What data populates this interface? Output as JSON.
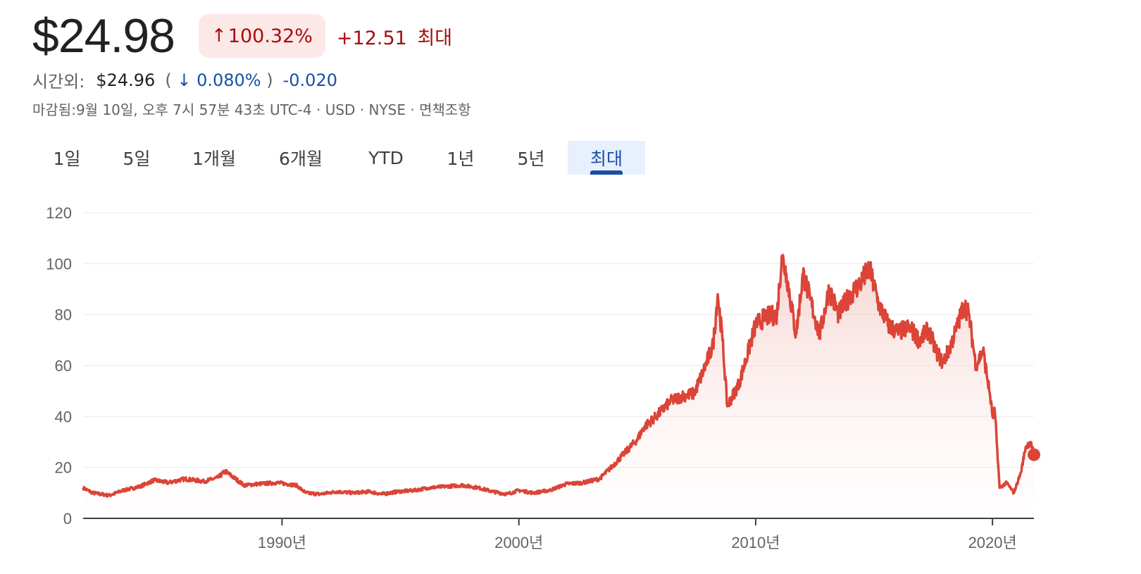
{
  "quote": {
    "price": "$24.98",
    "change_arrow": "↑",
    "change_percent": "100.32%",
    "change_abs": "+12.51",
    "change_period": "최대",
    "up_color": "#a50e0e",
    "badge_color": "#fce8e6"
  },
  "after_hours": {
    "label": "시간외:",
    "price": "$24.96",
    "open_paren": "(",
    "arrow": "↓",
    "percent": "0.080%",
    "close_paren": ")",
    "abs": "-0.020",
    "down_color": "#1a4fa6"
  },
  "meta_line": "마감됨:9월 10일, 오후 7시 57분 43초 UTC-4 · USD · NYSE · 면책조항",
  "tabs": [
    {
      "label": "1일",
      "active": false
    },
    {
      "label": "5일",
      "active": false
    },
    {
      "label": "1개월",
      "active": false
    },
    {
      "label": "6개월",
      "active": false
    },
    {
      "label": "YTD",
      "active": false
    },
    {
      "label": "1년",
      "active": false
    },
    {
      "label": "5년",
      "active": false
    },
    {
      "label": "최대",
      "active": true
    }
  ],
  "chart_data": {
    "type": "line",
    "line_color": "#db4437",
    "fill": "gradient-red",
    "grid": true,
    "ylim": [
      0,
      120
    ],
    "y_ticks": [
      "0",
      "20",
      "40",
      "60",
      "80",
      "100",
      "120"
    ],
    "x_ticks": [
      {
        "label": "1990년",
        "x": 1990
      },
      {
        "label": "2000년",
        "x": 2000
      },
      {
        "label": "2010년",
        "x": 2010
      },
      {
        "label": "2020년",
        "x": 2020
      }
    ],
    "xlim": [
      1981.6,
      2021.75
    ],
    "series": [
      {
        "x": [
          1981.6,
          1982.0,
          1982.7,
          1983.3,
          1984.0,
          1984.6,
          1985.2,
          1985.9,
          1986.7,
          1987.3,
          1987.6,
          1988.4,
          1989.0,
          1989.8,
          1990.6,
          1991.0,
          1991.6,
          1992.3,
          1993.0,
          1993.7,
          1994.2,
          1994.9,
          1995.6,
          1996.2,
          1996.9,
          1997.6,
          1998.3,
          1998.9,
          1999.5,
          2000.0,
          2000.6,
          2001.3,
          2002.0,
          2002.7,
          2003.4,
          2003.9,
          2004.4,
          2005.0,
          2005.3,
          2005.8,
          2006.4,
          2006.9,
          2007.4,
          2007.8,
          2008.2,
          2008.4,
          2008.6,
          2008.8,
          2009.3,
          2009.7,
          2010.0,
          2010.4,
          2010.9,
          2011.1,
          2011.3,
          2011.7,
          2012.0,
          2012.3,
          2012.7,
          2013.1,
          2013.5,
          2014.0,
          2014.4,
          2014.8,
          2015.2,
          2015.6,
          2016.0,
          2016.5,
          2016.9,
          2017.3,
          2017.6,
          2017.9,
          2018.2,
          2018.5,
          2018.8,
          2019.0,
          2019.3,
          2019.6,
          2019.9,
          2020.0,
          2020.1,
          2020.3,
          2020.6,
          2020.9,
          2021.2,
          2021.4,
          2021.6,
          2021.75
        ],
        "y": [
          12,
          10,
          9,
          11,
          12.5,
          15,
          14,
          15.5,
          14.5,
          16,
          18.5,
          13,
          13.5,
          14,
          13,
          10,
          9.5,
          10.5,
          10,
          10.5,
          9.5,
          10.5,
          11,
          12,
          12.5,
          13,
          12,
          10.5,
          9.5,
          11,
          10,
          11,
          13.5,
          14,
          15.5,
          20,
          25,
          31,
          36,
          40,
          46,
          48,
          49,
          58,
          68,
          88,
          70,
          44,
          53,
          66,
          76,
          79,
          80,
          103,
          96,
          72,
          96,
          86,
          72,
          90,
          80,
          88,
          92,
          98,
          84,
          76,
          73,
          75,
          70,
          74,
          66,
          61,
          67,
          75,
          84,
          80,
          60,
          66,
          48,
          40,
          42,
          12,
          14,
          10,
          18,
          28,
          30,
          24.98
        ]
      }
    ]
  }
}
